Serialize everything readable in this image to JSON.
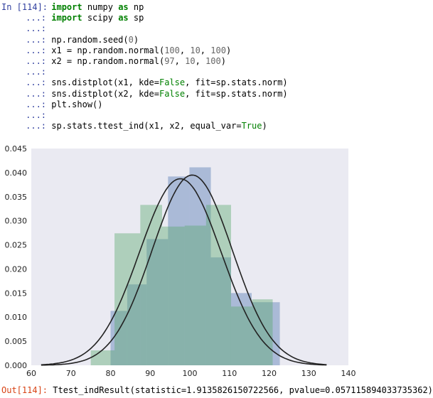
{
  "input_cell": {
    "prompt": "In [114]:",
    "continuation": "...:",
    "lines": [
      [
        {
          "t": "import",
          "c": "kw"
        },
        {
          "t": " numpy ",
          "c": ""
        },
        {
          "t": "as",
          "c": "kw"
        },
        {
          "t": " np",
          "c": ""
        }
      ],
      [
        {
          "t": "import",
          "c": "kw"
        },
        {
          "t": " scipy ",
          "c": ""
        },
        {
          "t": "as",
          "c": "kw"
        },
        {
          "t": " sp",
          "c": ""
        }
      ],
      [],
      [
        {
          "t": "np.random.seed(",
          "c": ""
        },
        {
          "t": "0",
          "c": "num"
        },
        {
          "t": ")",
          "c": ""
        }
      ],
      [
        {
          "t": "x1 = np.random.normal(",
          "c": ""
        },
        {
          "t": "100",
          "c": "num"
        },
        {
          "t": ", ",
          "c": ""
        },
        {
          "t": "10",
          "c": "num"
        },
        {
          "t": ", ",
          "c": ""
        },
        {
          "t": "100",
          "c": "num"
        },
        {
          "t": ")",
          "c": ""
        }
      ],
      [
        {
          "t": "x2 = np.random.normal(",
          "c": ""
        },
        {
          "t": "97",
          "c": "num"
        },
        {
          "t": ", ",
          "c": ""
        },
        {
          "t": "10",
          "c": "num"
        },
        {
          "t": ", ",
          "c": ""
        },
        {
          "t": "100",
          "c": "num"
        },
        {
          "t": ")",
          "c": ""
        }
      ],
      [],
      [
        {
          "t": "sns.distplot(x1, kde=",
          "c": ""
        },
        {
          "t": "False",
          "c": "kwc"
        },
        {
          "t": ", fit=sp.stats.norm)",
          "c": ""
        }
      ],
      [
        {
          "t": "sns.distplot(x2, kde=",
          "c": ""
        },
        {
          "t": "False",
          "c": "kwc"
        },
        {
          "t": ", fit=sp.stats.norm)",
          "c": ""
        }
      ],
      [
        {
          "t": "plt.show()",
          "c": ""
        }
      ],
      [],
      [
        {
          "t": "sp.stats.ttest_ind(x1, x2, equal_var=",
          "c": ""
        },
        {
          "t": "True",
          "c": "kwc"
        },
        {
          "t": ")",
          "c": ""
        }
      ]
    ]
  },
  "output_cell": {
    "prompt": "Out[114]:",
    "text": "Ttest_indResult(statistic=1.9135826150722566, pvalue=0.057115894033735362)"
  },
  "colors": {
    "prompt_in": "#303f9f",
    "prompt_out": "#d84315",
    "keyword": "#008000",
    "number": "#666666",
    "series1_fill": "#4c72b0",
    "series2_fill": "#55a868",
    "fit_line": "#222222",
    "plot_bg": "#eaeaf2"
  },
  "chart_data": {
    "type": "bar",
    "title": "",
    "xlabel": "",
    "ylabel": "",
    "xlim": [
      60,
      140
    ],
    "ylim": [
      0,
      0.045
    ],
    "xticks": [
      "60",
      "70",
      "80",
      "90",
      "100",
      "110",
      "120",
      "130",
      "140"
    ],
    "yticks": [
      "0.000",
      "0.005",
      "0.010",
      "0.015",
      "0.020",
      "0.025",
      "0.030",
      "0.035",
      "0.040",
      "0.045"
    ],
    "grid": false,
    "series": [
      {
        "kind": "histogram",
        "color": "#4c72b0",
        "alpha": 0.4,
        "bins": [
          {
            "x0": 80.0,
            "x1": 84.2,
            "y": 0.0113
          },
          {
            "x0": 84.2,
            "x1": 89.1,
            "y": 0.0168
          },
          {
            "x0": 89.1,
            "x1": 94.5,
            "y": 0.0262
          },
          {
            "x0": 94.5,
            "x1": 99.9,
            "y": 0.0392
          },
          {
            "x0": 99.9,
            "x1": 105.3,
            "y": 0.0411
          },
          {
            "x0": 105.3,
            "x1": 110.4,
            "y": 0.0224
          },
          {
            "x0": 110.4,
            "x1": 115.6,
            "y": 0.015
          },
          {
            "x0": 115.6,
            "x1": 122.7,
            "y": 0.0131
          }
        ]
      },
      {
        "kind": "histogram",
        "color": "#55a868",
        "alpha": 0.4,
        "bins": [
          {
            "x0": 75.0,
            "x1": 81.0,
            "y": 0.0031
          },
          {
            "x0": 81.0,
            "x1": 87.5,
            "y": 0.0274
          },
          {
            "x0": 87.5,
            "x1": 93.0,
            "y": 0.0333
          },
          {
            "x0": 93.0,
            "x1": 98.7,
            "y": 0.0288
          },
          {
            "x0": 98.7,
            "x1": 104.1,
            "y": 0.029
          },
          {
            "x0": 104.1,
            "x1": 110.4,
            "y": 0.0333
          },
          {
            "x0": 110.4,
            "x1": 115.7,
            "y": 0.0122
          },
          {
            "x0": 115.7,
            "x1": 120.9,
            "y": 0.0137
          }
        ]
      },
      {
        "kind": "normal_fit",
        "mean": 100.6,
        "sd": 10.1,
        "color": "#222222"
      },
      {
        "kind": "normal_fit",
        "mean": 97.6,
        "sd": 10.3,
        "color": "#222222"
      }
    ]
  }
}
